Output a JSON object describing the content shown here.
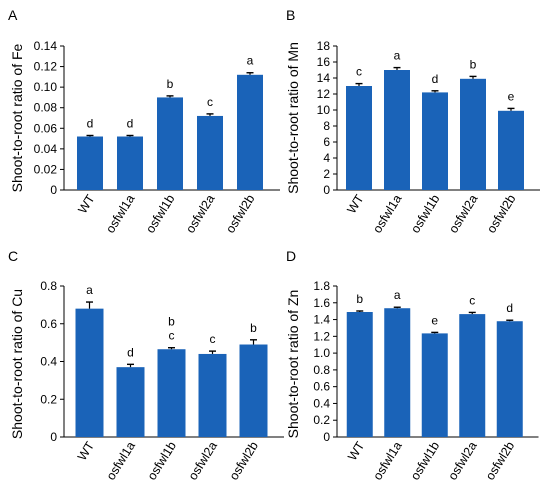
{
  "colors": {
    "bar": "#1a63b8",
    "axis": "#000000",
    "error": "#000000"
  },
  "chart_data": [
    {
      "panel": "A",
      "type": "bar",
      "ylabel": "Shoot-to-root ratio of Fe",
      "categories": [
        "WT",
        "osfwl1a",
        "osfwl1b",
        "osfwl2a",
        "osfwl2b"
      ],
      "values": [
        0.052,
        0.052,
        0.09,
        0.072,
        0.112
      ],
      "errors": [
        0.001,
        0.001,
        0.0015,
        0.002,
        0.002
      ],
      "letters": [
        [
          "d"
        ],
        [
          "d"
        ],
        [
          "b"
        ],
        [
          "c"
        ],
        [
          "a"
        ]
      ],
      "ylim": [
        0,
        0.14
      ],
      "ticks": [
        "0",
        "0.02",
        "0.04",
        "0.06",
        "0.08",
        "0.10",
        "0.12",
        "0.14"
      ]
    },
    {
      "panel": "B",
      "type": "bar",
      "ylabel": "Shoot-to-root ratio of Mn",
      "categories": [
        "WT",
        "osfwl1a",
        "osfwl1b",
        "osfwl2a",
        "osfwl2b"
      ],
      "values": [
        13.0,
        15.0,
        12.2,
        13.9,
        9.9
      ],
      "errors": [
        0.3,
        0.3,
        0.2,
        0.3,
        0.3
      ],
      "letters": [
        [
          "c"
        ],
        [
          "a"
        ],
        [
          "d"
        ],
        [
          "b"
        ],
        [
          "e"
        ]
      ],
      "ylim": [
        0,
        18
      ],
      "ticks": [
        "0",
        "2",
        "4",
        "6",
        "8",
        "10",
        "12",
        "14",
        "16",
        "18"
      ]
    },
    {
      "panel": "C",
      "type": "bar",
      "ylabel": "Shoot-to-root ratio of Cu",
      "categories": [
        "WT",
        "osfwl1a",
        "osfwl1b",
        "osfwl2a",
        "osfwl2b"
      ],
      "values": [
        0.68,
        0.37,
        0.465,
        0.44,
        0.49
      ],
      "errors": [
        0.035,
        0.015,
        0.008,
        0.015,
        0.025
      ],
      "letters": [
        [
          "a"
        ],
        [
          "d"
        ],
        [
          "b",
          "c"
        ],
        [
          "c"
        ],
        [
          "b"
        ]
      ],
      "ylim": [
        0,
        0.8
      ],
      "ticks": [
        "0",
        "0.2",
        "0.4",
        "0.6",
        "0.8"
      ]
    },
    {
      "panel": "D",
      "type": "bar",
      "ylabel": "Shoot-to-root ratio of Zn",
      "categories": [
        "WT",
        "osfwl1a",
        "osfwl1b",
        "osfwl2a",
        "osfwl2b"
      ],
      "values": [
        1.49,
        1.535,
        1.235,
        1.465,
        1.38
      ],
      "errors": [
        0.012,
        0.012,
        0.012,
        0.02,
        0.012
      ],
      "letters": [
        [
          "b"
        ],
        [
          "a"
        ],
        [
          "e"
        ],
        [
          "c"
        ],
        [
          "d"
        ]
      ],
      "ylim": [
        0,
        1.8
      ],
      "ticks": [
        "0",
        "0.2",
        "0.4",
        "0.6",
        "0.8",
        "1.0",
        "1.2",
        "1.4",
        "1.6",
        "1.8"
      ]
    }
  ]
}
